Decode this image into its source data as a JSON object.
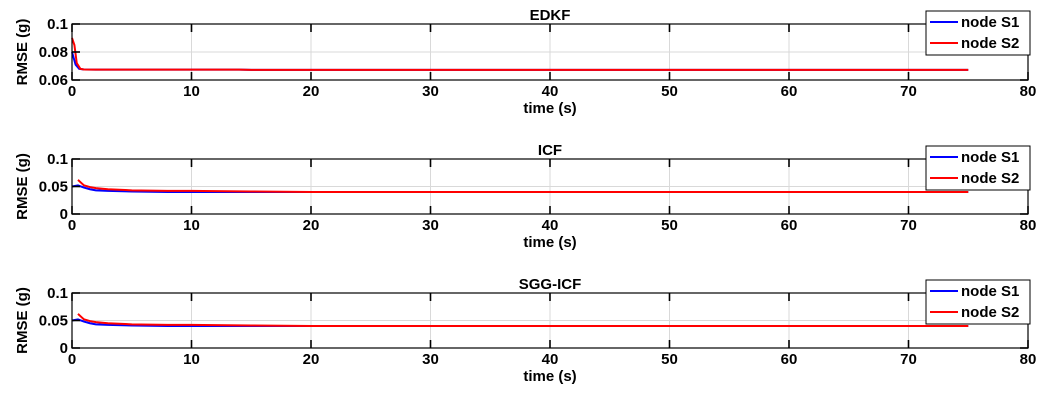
{
  "chart_data": [
    {
      "type": "line",
      "title": "EDKF",
      "xlabel": "time (s)",
      "ylabel": "RMSE (g)",
      "xlim": [
        0,
        80
      ],
      "ylim": [
        0.06,
        0.1
      ],
      "xticks": [
        "0",
        "10",
        "20",
        "30",
        "40",
        "50",
        "60",
        "70",
        "80"
      ],
      "yticks": [
        "0.06",
        "0.08",
        "0.1"
      ],
      "grid": true,
      "legend": "top-right",
      "series": [
        {
          "name": "node S1",
          "color": "#0000ff",
          "x": [
            0,
            0.3,
            0.6,
            1,
            2,
            5,
            10,
            14,
            15,
            20,
            30,
            40,
            50,
            60,
            70,
            75
          ],
          "y": [
            0.08,
            0.071,
            0.068,
            0.0675,
            0.0674,
            0.0674,
            0.0674,
            0.0674,
            0.0672,
            0.0672,
            0.0672,
            0.0672,
            0.0672,
            0.0672,
            0.0672,
            0.0672
          ]
        },
        {
          "name": "node S2",
          "color": "#ff0000",
          "x": [
            0,
            0.2,
            0.4,
            0.7,
            1,
            2,
            5,
            10,
            14,
            15,
            20,
            30,
            40,
            50,
            60,
            70,
            75
          ],
          "y": [
            0.09,
            0.085,
            0.072,
            0.068,
            0.0675,
            0.0674,
            0.0674,
            0.0674,
            0.0674,
            0.0672,
            0.0672,
            0.0672,
            0.0672,
            0.0672,
            0.0672,
            0.0672,
            0.0672
          ]
        }
      ]
    },
    {
      "type": "line",
      "title": "ICF",
      "xlabel": "time (s)",
      "ylabel": "RMSE (g)",
      "xlim": [
        0,
        80
      ],
      "ylim": [
        0,
        0.1
      ],
      "xticks": [
        "0",
        "10",
        "20",
        "30",
        "40",
        "50",
        "60",
        "70",
        "80"
      ],
      "yticks": [
        "0",
        "0.05",
        "0.1"
      ],
      "grid": true,
      "legend": "top-right",
      "series": [
        {
          "name": "node S1",
          "color": "#0000ff",
          "x": [
            0,
            0.5,
            1,
            1.5,
            2,
            3,
            5,
            8,
            10,
            15,
            20,
            30,
            40,
            50,
            60,
            70,
            75
          ],
          "y": [
            0.05,
            0.052,
            0.048,
            0.045,
            0.043,
            0.042,
            0.041,
            0.04,
            0.04,
            0.04,
            0.04,
            0.04,
            0.04,
            0.04,
            0.04,
            0.04,
            0.04
          ]
        },
        {
          "name": "node S2",
          "color": "#ff0000",
          "x": [
            0.5,
            0.8,
            1,
            1.5,
            2,
            3,
            5,
            8,
            10,
            15,
            20,
            30,
            40,
            50,
            60,
            70,
            75
          ],
          "y": [
            0.062,
            0.056,
            0.052,
            0.049,
            0.047,
            0.045,
            0.043,
            0.042,
            0.042,
            0.041,
            0.04,
            0.04,
            0.04,
            0.04,
            0.04,
            0.04,
            0.04
          ]
        }
      ]
    },
    {
      "type": "line",
      "title": "SGG-ICF",
      "xlabel": "time (s)",
      "ylabel": "RMSE (g)",
      "xlim": [
        0,
        80
      ],
      "ylim": [
        0,
        0.1
      ],
      "xticks": [
        "0",
        "10",
        "20",
        "30",
        "40",
        "50",
        "60",
        "70",
        "80"
      ],
      "yticks": [
        "0",
        "0.05",
        "0.1"
      ],
      "grid": true,
      "legend": "top-right",
      "series": [
        {
          "name": "node S1",
          "color": "#0000ff",
          "x": [
            0,
            0.5,
            1,
            1.5,
            2,
            3,
            5,
            8,
            10,
            15,
            20,
            30,
            40,
            50,
            60,
            70,
            75
          ],
          "y": [
            0.05,
            0.052,
            0.048,
            0.045,
            0.043,
            0.042,
            0.041,
            0.04,
            0.04,
            0.04,
            0.04,
            0.04,
            0.04,
            0.04,
            0.04,
            0.04,
            0.04
          ]
        },
        {
          "name": "node S2",
          "color": "#ff0000",
          "x": [
            0.5,
            0.8,
            1,
            1.5,
            2,
            3,
            5,
            8,
            10,
            15,
            20,
            30,
            40,
            50,
            60,
            70,
            75
          ],
          "y": [
            0.062,
            0.056,
            0.052,
            0.049,
            0.047,
            0.045,
            0.043,
            0.042,
            0.042,
            0.041,
            0.04,
            0.04,
            0.04,
            0.04,
            0.04,
            0.04,
            0.04
          ]
        }
      ]
    }
  ]
}
